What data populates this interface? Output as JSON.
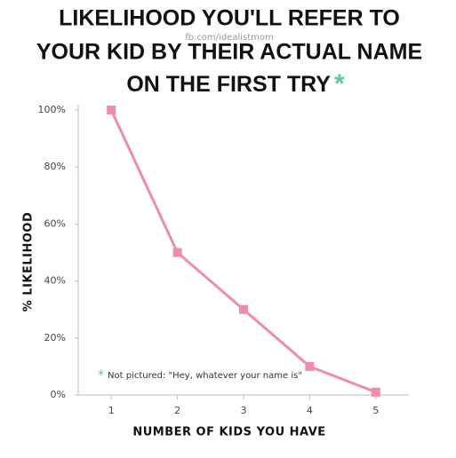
{
  "chart_data": {
    "type": "line",
    "title": [
      "LIKELIHOOD YOU'LL REFER TO",
      "YOUR KID BY THEIR ACTUAL NAME",
      "ON THE FIRST TRY"
    ],
    "title_marker": "*",
    "watermark": "fb.com/idealistmom",
    "x_label": "NUMBER OF KIDS YOU HAVE",
    "y_label": "% LIKELIHOOD",
    "annotation": {
      "marker": "*",
      "text": "Not pictured: \"Hey, whatever your name is\""
    },
    "x": [
      1,
      2,
      3,
      4,
      5
    ],
    "values": [
      100,
      50,
      30,
      10,
      1
    ],
    "color": "#f08ca8",
    "marker_color": "#5cc8a0",
    "xlim": [
      0.5,
      5.5
    ],
    "xticks": [
      1,
      2,
      3,
      4,
      5
    ],
    "ylim": [
      0,
      100
    ],
    "yticks": [
      {
        "value": 0,
        "label": "0%"
      },
      {
        "value": 20,
        "label": "20%"
      },
      {
        "value": 40,
        "label": "40%"
      },
      {
        "value": 60,
        "label": "60%"
      },
      {
        "value": 80,
        "label": "80%"
      },
      {
        "value": 100,
        "label": "100%"
      }
    ]
  }
}
